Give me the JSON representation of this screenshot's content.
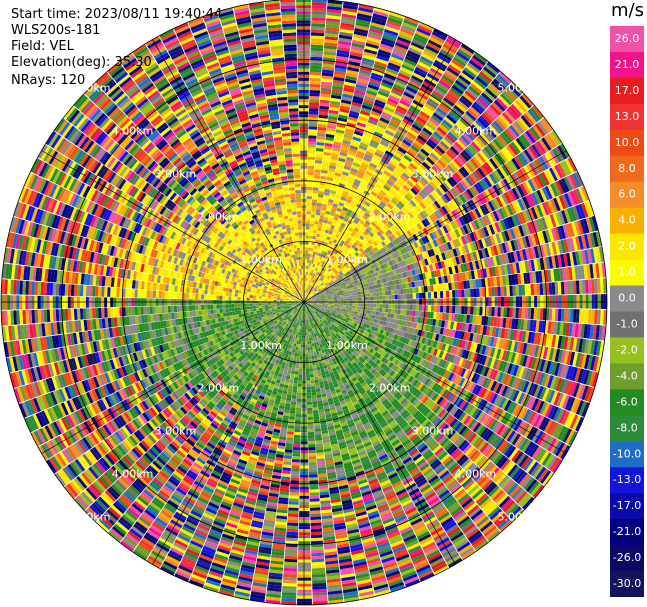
{
  "header": {
    "start_time": "Start time: 2023/08/11 19:40:44",
    "instrument": "WLS200s-181",
    "field": "Field: VEL",
    "elevation": "Elevation(deg): 35.30",
    "nrays": "NRays: 120"
  },
  "chart_data": {
    "type": "heatmap",
    "projection": "polar (PPI)",
    "field": "VEL",
    "units": "m/s",
    "nrays": 120,
    "range_ring_labels": [
      "1.00km",
      "2.00km",
      "3.00km",
      "4.00km",
      "5.00km"
    ],
    "max_range_km": 5.0,
    "colorbar": {
      "units": "m/s",
      "ticks": [
        "26.0",
        "21.0",
        "17.0",
        "13.0",
        "10.0",
        "8.0",
        "6.0",
        "4.0",
        "2.0",
        "1.0",
        "0.0",
        "-1.0",
        "-2.0",
        "-4.0",
        "-6.0",
        "-8.0",
        "-10.0",
        "-13.0",
        "-17.0",
        "-21.0",
        "-26.0",
        "-30.0"
      ],
      "colors": [
        "#f052a8",
        "#f0148c",
        "#e81c1c",
        "#f03232",
        "#f04a14",
        "#f06a1e",
        "#f48c2a",
        "#f8b000",
        "#fce600",
        "#fafa00",
        "#8a8a8a",
        "#707070",
        "#96c020",
        "#6e9e2e",
        "#228b22",
        "#2e8b3c",
        "#1e6ec8",
        "#1414dc",
        "#0a0aaa",
        "#000080",
        "#0a0a64",
        "#14145a"
      ]
    },
    "field_pattern": {
      "near_range_north": "yellow/orange (0 to +6 m/s)",
      "near_range_south": "green (-2 to -8 m/s)",
      "near_range_east": "grey (~0 m/s)",
      "far_range": "noisy mixed colors"
    }
  }
}
